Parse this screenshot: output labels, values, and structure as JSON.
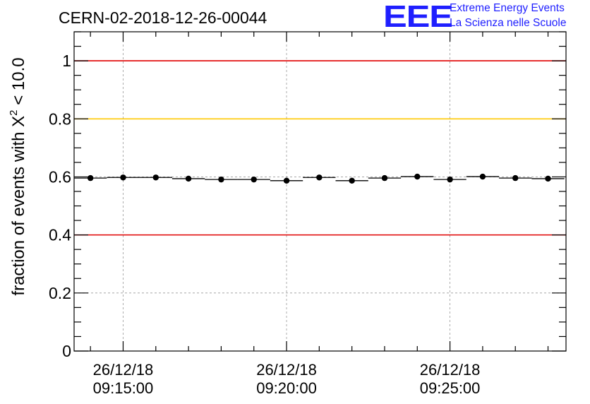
{
  "logo": {
    "mark": "EEE",
    "line1": "Extreme Energy Events",
    "line2": "La Scienza nelle Scuole"
  },
  "colors": {
    "red": "#e00000",
    "yellow": "#ffc800",
    "logo": "#1f1fff",
    "grid": "#999999"
  },
  "chart_data": {
    "type": "scatter",
    "title": "CERN-02-2018-12-26-00044",
    "xlabel": "",
    "ylabel_prefix": "fraction of events with ",
    "ylabel_chi": "X",
    "ylabel_sup": "2",
    "ylabel_suffix": " < 10.0",
    "x_unit": "minutes after 09:10:00",
    "xlim": [
      3.5,
      18.55
    ],
    "ylim": [
      0,
      1.1
    ],
    "yticks": [
      0,
      0.2,
      0.4,
      0.6,
      0.8,
      1
    ],
    "ytick_labels": [
      "0",
      "0.2",
      "0.4",
      "0.6",
      "0.8",
      "1"
    ],
    "xticks": [
      {
        "x": 5,
        "date": "26/12/18",
        "time": "09:15:00"
      },
      {
        "x": 10,
        "date": "26/12/18",
        "time": "09:20:00"
      },
      {
        "x": 15,
        "date": "26/12/18",
        "time": "09:25:00"
      }
    ],
    "x_minor_step": 1,
    "bin_width": 1,
    "reference_lines": [
      {
        "y": 1.0,
        "color": "red"
      },
      {
        "y": 0.8,
        "color": "yellow"
      },
      {
        "y": 0.4,
        "color": "red"
      }
    ],
    "series": [
      {
        "name": "fraction",
        "x": [
          4.0,
          5.0,
          6.0,
          7.0,
          8.0,
          9.0,
          10.0,
          11.0,
          12.0,
          13.0,
          14.0,
          15.0,
          16.0,
          17.0,
          18.0
        ],
        "values": [
          0.596,
          0.598,
          0.598,
          0.594,
          0.591,
          0.591,
          0.587,
          0.598,
          0.587,
          0.596,
          0.601,
          0.591,
          0.601,
          0.596,
          0.594
        ]
      }
    ]
  }
}
